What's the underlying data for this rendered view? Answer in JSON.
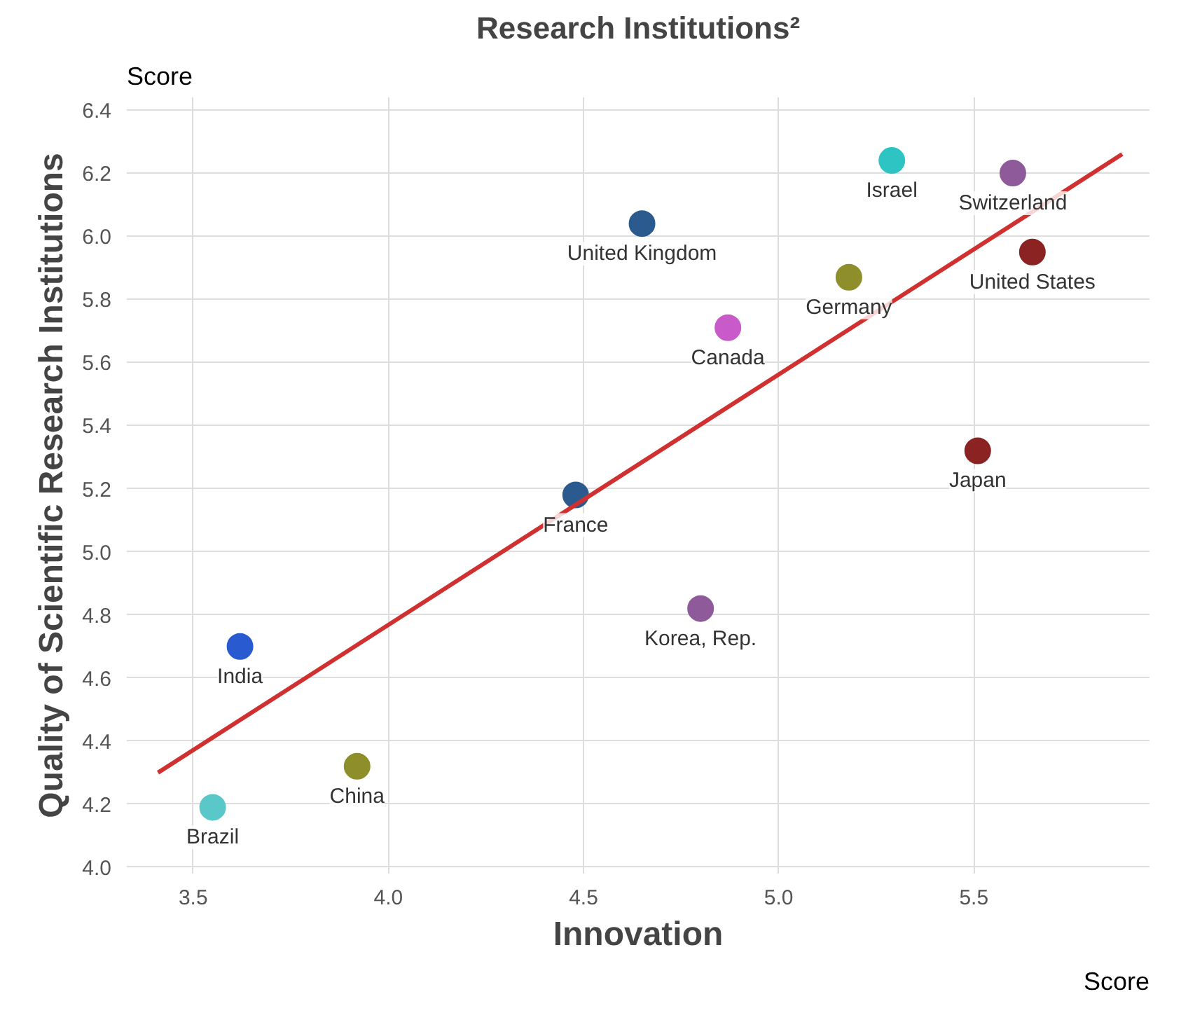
{
  "chart_data": {
    "type": "scatter",
    "title": "Research Institutions²",
    "xlabel": "Innovation",
    "ylabel": "Quality of Scientific Research Institutions",
    "annotations": [
      "Score",
      "Score"
    ],
    "xlim": [
      3.33,
      5.95
    ],
    "ylim": [
      3.98,
      6.44
    ],
    "xticks": [
      3.5,
      {
        "value": 4,
        "label": "4.0"
      },
      4.5,
      {
        "value": 5,
        "label": "5.0"
      },
      5.5
    ],
    "yticks": [
      {
        "value": 4,
        "label": "4.0"
      },
      4.2,
      4.4,
      4.6,
      4.8,
      {
        "value": 5,
        "label": "5.0"
      },
      5.2,
      5.4,
      5.6,
      5.8,
      {
        "value": 6,
        "label": "6.0"
      },
      6.2,
      6.4
    ],
    "grid": true,
    "marker": "circle",
    "series": [
      {
        "name": "Israel",
        "color": "#2ec4c4",
        "x": [
          5.29
        ],
        "values": [
          6.24
        ]
      },
      {
        "name": "Switzerland",
        "color": "#8e5a9a",
        "x": [
          5.6
        ],
        "values": [
          6.2
        ]
      },
      {
        "name": "United Kingdom",
        "color": "#2a5a8e",
        "x": [
          4.65
        ],
        "values": [
          6.04
        ]
      },
      {
        "name": "United States",
        "color": "#8b2323",
        "x": [
          5.65
        ],
        "values": [
          5.95
        ]
      },
      {
        "name": "Germany",
        "color": "#8e8e2a",
        "x": [
          5.18
        ],
        "values": [
          5.87
        ]
      },
      {
        "name": "Canada",
        "color": "#c95ac9",
        "x": [
          4.87
        ],
        "values": [
          5.71
        ]
      },
      {
        "name": "Japan",
        "color": "#8b2323",
        "x": [
          5.51
        ],
        "values": [
          5.32
        ]
      },
      {
        "name": "France",
        "color": "#2a5a8e",
        "x": [
          4.48
        ],
        "values": [
          5.18
        ]
      },
      {
        "name": "Korea, Rep.",
        "color": "#8e5a9a",
        "x": [
          4.8
        ],
        "values": [
          4.82
        ]
      },
      {
        "name": "India",
        "color": "#2a5ad0",
        "x": [
          3.62
        ],
        "values": [
          4.7
        ]
      },
      {
        "name": "China",
        "color": "#8e8e2a",
        "x": [
          3.92
        ],
        "values": [
          4.32
        ]
      },
      {
        "name": "Brazil",
        "color": "#5ac8c8",
        "x": [
          3.55
        ],
        "values": [
          4.19
        ]
      },
      {
        "type": "line",
        "color": "#d03030",
        "x": [
          3.41,
          5.88
        ],
        "values": [
          4.3,
          6.26
        ],
        "marker": "none"
      }
    ]
  }
}
